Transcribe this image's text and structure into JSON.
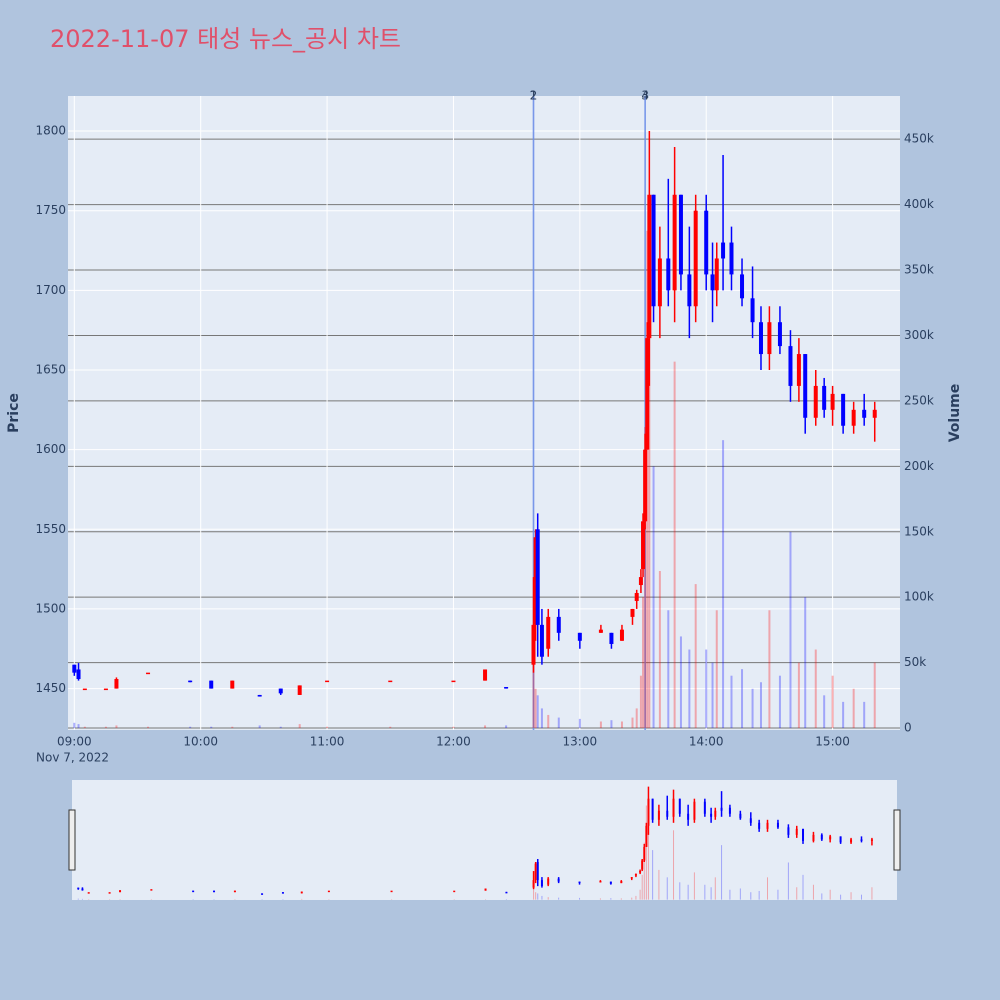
{
  "chart_data": {
    "type": "candlestick",
    "title": "2022-11-07 태성 뉴스_공시 차트",
    "ylabel": "Price",
    "y2label": "Volume",
    "x_date_label": "Nov 7, 2022",
    "x": [
      "09:00",
      "09:02",
      "09:05",
      "09:15",
      "09:20",
      "09:35",
      "09:55",
      "10:05",
      "10:15",
      "10:28",
      "10:38",
      "10:47",
      "11:00",
      "11:30",
      "12:00",
      "12:15",
      "12:25",
      "12:38",
      "12:39",
      "12:40",
      "12:42",
      "12:45",
      "12:50",
      "13:00",
      "13:10",
      "13:15",
      "13:20",
      "13:25",
      "13:27",
      "13:29",
      "13:30",
      "13:31",
      "13:32",
      "13:33",
      "13:35",
      "13:38",
      "13:42",
      "13:45",
      "13:48",
      "13:52",
      "13:55",
      "14:00",
      "14:03",
      "14:05",
      "14:08",
      "14:12",
      "14:17",
      "14:22",
      "14:26",
      "14:30",
      "14:35",
      "14:40",
      "14:44",
      "14:47",
      "14:52",
      "14:56",
      "15:00",
      "15:05",
      "15:10",
      "15:15",
      "15:20"
    ],
    "open": [
      1465,
      1462,
      1450,
      1450,
      1450,
      1460,
      1455,
      1455,
      1450,
      1446,
      1450,
      1446,
      1455,
      1455,
      1455,
      1455,
      1451,
      1465,
      1490,
      1550,
      1490,
      1475,
      1495,
      1485,
      1485,
      1485,
      1480,
      1495,
      1505,
      1515,
      1525,
      1555,
      1600,
      1670,
      1760,
      1690,
      1720,
      1700,
      1760,
      1710,
      1690,
      1750,
      1710,
      1700,
      1730,
      1730,
      1710,
      1695,
      1680,
      1660,
      1680,
      1665,
      1640,
      1660,
      1620,
      1640,
      1625,
      1635,
      1615,
      1625,
      1620
    ],
    "high": [
      1465,
      1466,
      1450,
      1450,
      1457,
      1460,
      1455,
      1455,
      1455,
      1446,
      1450,
      1452,
      1455,
      1455,
      1455,
      1462,
      1451,
      1520,
      1550,
      1560,
      1500,
      1500,
      1500,
      1485,
      1490,
      1485,
      1490,
      1500,
      1512,
      1525,
      1560,
      1610,
      1680,
      1800,
      1760,
      1740,
      1770,
      1790,
      1760,
      1740,
      1760,
      1760,
      1730,
      1730,
      1785,
      1740,
      1720,
      1715,
      1690,
      1690,
      1690,
      1675,
      1670,
      1660,
      1650,
      1645,
      1640,
      1635,
      1630,
      1635,
      1630
    ],
    "low": [
      1458,
      1455,
      1450,
      1450,
      1450,
      1460,
      1454,
      1450,
      1450,
      1445,
      1446,
      1446,
      1455,
      1455,
      1455,
      1455,
      1450,
      1460,
      1480,
      1470,
      1465,
      1470,
      1480,
      1475,
      1485,
      1475,
      1480,
      1490,
      1500,
      1510,
      1520,
      1550,
      1600,
      1640,
      1680,
      1670,
      1690,
      1680,
      1700,
      1670,
      1680,
      1700,
      1680,
      1690,
      1700,
      1700,
      1690,
      1670,
      1650,
      1650,
      1660,
      1630,
      1630,
      1610,
      1615,
      1620,
      1615,
      1610,
      1610,
      1615,
      1605
    ],
    "close": [
      1460,
      1456,
      1450,
      1450,
      1456,
      1460,
      1454,
      1450,
      1455,
      1445,
      1447,
      1452,
      1455,
      1455,
      1455,
      1462,
      1450,
      1490,
      1545,
      1490,
      1470,
      1495,
      1485,
      1480,
      1487,
      1478,
      1487,
      1500,
      1510,
      1520,
      1555,
      1600,
      1670,
      1760,
      1690,
      1720,
      1700,
      1760,
      1710,
      1690,
      1750,
      1710,
      1700,
      1720,
      1720,
      1710,
      1695,
      1680,
      1660,
      1680,
      1665,
      1640,
      1660,
      1620,
      1640,
      1625,
      1635,
      1615,
      1625,
      1620,
      1625
    ],
    "volume": [
      4000,
      3000,
      1000,
      1000,
      2000,
      1000,
      1000,
      1000,
      1000,
      2000,
      1000,
      3000,
      1000,
      1000,
      1000,
      2000,
      2000,
      60000,
      30000,
      25000,
      15000,
      10000,
      8000,
      7000,
      5000,
      6000,
      5000,
      8000,
      15000,
      40000,
      100000,
      230000,
      380000,
      350000,
      200000,
      120000,
      90000,
      280000,
      70000,
      60000,
      110000,
      60000,
      50000,
      90000,
      220000,
      40000,
      45000,
      30000,
      35000,
      90000,
      40000,
      150000,
      50000,
      100000,
      60000,
      25000,
      40000,
      20000,
      30000,
      20000,
      50000
    ],
    "colors": {
      "increasing": "#ff0000",
      "decreasing": "#0000ff"
    },
    "xlim": [
      "08:57",
      "15:32"
    ],
    "xticks": [
      "09:00",
      "10:00",
      "11:00",
      "12:00",
      "13:00",
      "14:00",
      "15:00"
    ],
    "ylim": [
      1424,
      1822
    ],
    "yticks": [
      1450,
      1500,
      1550,
      1600,
      1650,
      1700,
      1750,
      1800
    ],
    "y2lim": [
      -1500,
      483000
    ],
    "y2ticks": [
      0,
      {
        "value": 50000,
        "label": "50k"
      },
      {
        "value": 100000,
        "label": "100k"
      },
      {
        "value": 150000,
        "label": "150k"
      },
      {
        "value": 200000,
        "label": "200k"
      },
      {
        "value": 250000,
        "label": "250k"
      },
      {
        "value": 300000,
        "label": "300k"
      },
      {
        "value": 350000,
        "label": "350k"
      },
      {
        "value": 400000,
        "label": "400k"
      },
      {
        "value": 450000,
        "label": "450k"
      }
    ],
    "annotations": [
      {
        "x": "12:38",
        "label": "1"
      },
      {
        "x": "12:38",
        "label": "2"
      },
      {
        "x": "13:31",
        "label": "3"
      },
      {
        "x": "13:31",
        "label": "4"
      }
    ],
    "rangeslider": true
  }
}
